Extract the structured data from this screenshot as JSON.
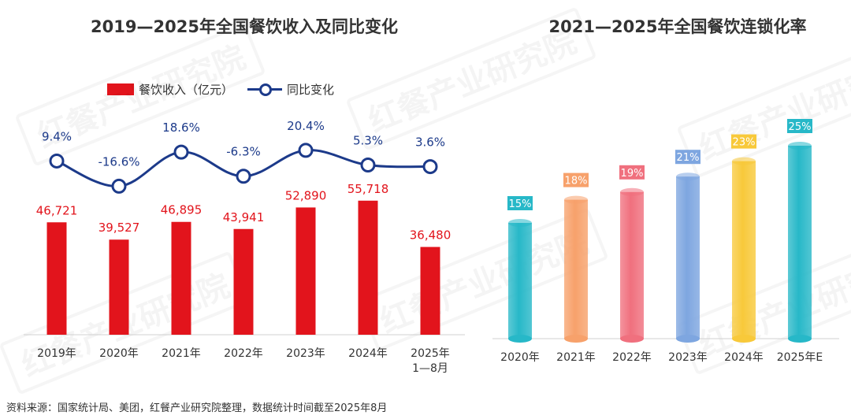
{
  "left_title": "2019—2025年全国餐饮收入及同比变化",
  "right_title": "2021—2025年全国餐饮连锁化率",
  "source": "资料来源：国家统计局、美团，红餐产业研究院整理，数据统计时间截至2025年8月",
  "watermark": "红餐产业研究院",
  "colors": {
    "bar": "#e2141c",
    "line": "#1c3a8a",
    "cylinders": [
      "#27b8c8",
      "#f7a16b",
      "#f0707e",
      "#7ea6e0",
      "#f8c93a",
      "#27b8c8"
    ]
  },
  "chart_data": [
    {
      "type": "bar",
      "title": "2019—2025年全国餐饮收入及同比变化",
      "categories": [
        "2019年",
        "2020年",
        "2021年",
        "2022年",
        "2023年",
        "2024年",
        "2025年\n1—8月"
      ],
      "series": [
        {
          "name": "餐饮收入（亿元）",
          "type": "bar",
          "values": [
            46721,
            39527,
            46895,
            43941,
            52890,
            55718,
            36480
          ],
          "labels": [
            "46,721",
            "39,527",
            "46,895",
            "43,941",
            "52,890",
            "55,718",
            "36,480"
          ]
        },
        {
          "name": "同比变化",
          "type": "line",
          "values": [
            9.4,
            -16.6,
            18.6,
            -6.3,
            20.4,
            5.3,
            3.6
          ],
          "labels": [
            "9.4%",
            "-16.6%",
            "18.6%",
            "-6.3%",
            "20.4%",
            "5.3%",
            "3.6%"
          ]
        }
      ],
      "legend": "top-left"
    },
    {
      "type": "bar",
      "title": "2021—2025年全国餐饮连锁化率",
      "categories": [
        "2020年",
        "2021年",
        "2022年",
        "2023年",
        "2024年",
        "2025年E"
      ],
      "values": [
        15,
        18,
        19,
        21,
        23,
        25
      ],
      "labels": [
        "15%",
        "18%",
        "19%",
        "21%",
        "23%",
        "25%"
      ]
    }
  ]
}
